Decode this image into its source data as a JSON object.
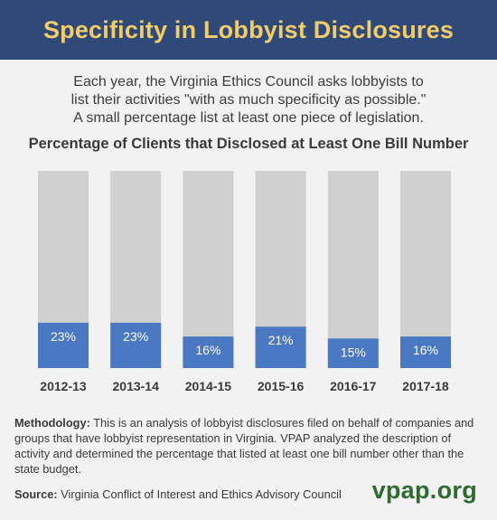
{
  "header": {
    "title": "Specificity in Lobbyist Disclosures"
  },
  "intro": {
    "lines": [
      "Each year, the Virginia Ethics Council asks lobbyists to",
      "list their activities \"with as much specificity as possible.\"",
      "A small percentage list at least one piece of legislation."
    ]
  },
  "chart_data": {
    "type": "bar",
    "title": "Percentage of Clients that Disclosed at Least One Bill Number",
    "categories": [
      "2012-13",
      "2013-14",
      "2014-15",
      "2015-16",
      "2016-17",
      "2017-18"
    ],
    "values": [
      23,
      23,
      16,
      21,
      15,
      16
    ],
    "value_labels": [
      "23%",
      "23%",
      "16%",
      "21%",
      "15%",
      "16%"
    ],
    "ylim": [
      0,
      100
    ],
    "grid": false,
    "colors": {
      "bar": "#4a78c2",
      "track": "#d0d0d0",
      "label": "#ffffff"
    }
  },
  "methodology": {
    "label": "Methodology:",
    "text": " This is an analysis of lobbyist disclosures filed on behalf of companies and groups that have lobbyist representation in Virginia. VPAP analyzed the description of activity and determined the percentage that listed at least one bill number other than the state budget."
  },
  "source": {
    "label": "Source:",
    "text": " Virginia Conflict of Interest and Ethics Advisory Council"
  },
  "brand": {
    "text": "vpap.org"
  }
}
